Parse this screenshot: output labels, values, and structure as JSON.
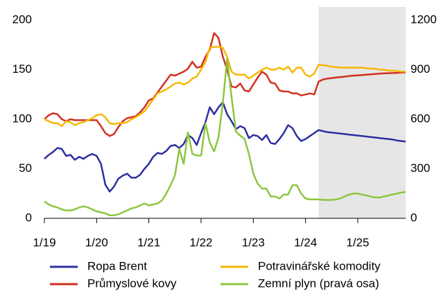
{
  "chart_data": {
    "type": "line",
    "x": [
      "1/19",
      "2/19",
      "3/19",
      "4/19",
      "5/19",
      "6/19",
      "7/19",
      "8/19",
      "9/19",
      "10/19",
      "11/19",
      "12/19",
      "1/20",
      "2/20",
      "3/20",
      "4/20",
      "5/20",
      "6/20",
      "7/20",
      "8/20",
      "9/20",
      "10/20",
      "11/20",
      "12/20",
      "1/21",
      "2/21",
      "3/21",
      "4/21",
      "5/21",
      "6/21",
      "7/21",
      "8/21",
      "9/21",
      "10/21",
      "11/21",
      "12/21",
      "1/22",
      "2/22",
      "3/22",
      "4/22",
      "5/22",
      "6/22",
      "7/22",
      "8/22",
      "9/22",
      "10/22",
      "11/22",
      "12/22",
      "1/23",
      "2/23",
      "3/23",
      "4/23",
      "5/23",
      "6/23",
      "7/23",
      "8/23",
      "9/23",
      "10/23",
      "11/23",
      "12/23",
      "1/24",
      "2/24",
      "3/24",
      "4/24",
      "5/24",
      "6/24",
      "7/24",
      "8/24",
      "9/24",
      "10/24",
      "11/24",
      "12/24",
      "1/25",
      "2/25",
      "3/25",
      "4/25",
      "5/25",
      "6/25",
      "7/25",
      "8/25",
      "9/25",
      "10/25",
      "11/25",
      "12/25"
    ],
    "xticks": [
      "1/19",
      "1/20",
      "1/21",
      "1/22",
      "1/23",
      "1/24",
      "1/25"
    ],
    "ylim": [
      0,
      200
    ],
    "yticks": [
      0,
      50,
      100,
      150,
      200
    ],
    "y2lim": [
      0,
      1200
    ],
    "y2ticks": [
      0,
      300,
      600,
      900,
      1200
    ],
    "shade": {
      "from": "4/24",
      "to": "12/25",
      "color": "#e6e6e6"
    },
    "series": [
      {
        "name": "Ropa Brent",
        "color": "#2b2fa0",
        "values": [
          60,
          64,
          67,
          71,
          70,
          63,
          64,
          59,
          62,
          60,
          63,
          65,
          63,
          55,
          34,
          27,
          32,
          40,
          43,
          45,
          41,
          41,
          44,
          50,
          55,
          62,
          66,
          65,
          68,
          73,
          74,
          71,
          75,
          84,
          81,
          74,
          86,
          97,
          112,
          105,
          112,
          117,
          105,
          98,
          90,
          93,
          91,
          81,
          84,
          83,
          79,
          84,
          76,
          75,
          80,
          86,
          94,
          91,
          83,
          78,
          80,
          83,
          86,
          89,
          88,
          87,
          86.5,
          86,
          85.5,
          85,
          84.5,
          84,
          83.5,
          83,
          82.5,
          82,
          81.5,
          81,
          80.5,
          80,
          79.5,
          78.5,
          78,
          77.5
        ]
      },
      {
        "name": "Průmyslové kovy",
        "color": "#d2301f",
        "values": [
          100,
          104,
          106,
          105,
          100,
          98,
          100,
          99,
          99,
          99,
          99,
          99,
          99,
          93,
          86,
          83,
          85,
          92,
          98,
          101,
          102,
          103,
          107,
          112,
          119,
          121,
          127,
          133,
          139,
          145,
          144,
          146,
          148,
          151,
          158,
          152,
          153,
          163,
          170,
          187,
          182,
          163,
          150,
          133,
          132,
          136,
          129,
          128,
          135,
          142,
          148,
          145,
          137,
          136,
          129,
          128,
          128,
          126,
          126,
          124,
          125,
          126,
          125,
          138,
          140,
          141,
          141.5,
          142,
          142.5,
          143,
          143.5,
          144,
          144.3,
          144.6,
          145,
          145.3,
          145.6,
          146,
          146.2,
          146.4,
          146.6,
          146.8,
          147,
          147.2
        ]
      },
      {
        "name": "Potravinářské komodity",
        "color": "#f5b800",
        "values": [
          100,
          98,
          96,
          96,
          93,
          98,
          97,
          94,
          96,
          97,
          99,
          101,
          104,
          105,
          102,
          96,
          95,
          96,
          96,
          97,
          100,
          102,
          105,
          108,
          114,
          120,
          126,
          128,
          130,
          133,
          136,
          137,
          135,
          137,
          141,
          143,
          150,
          158,
          172,
          173,
          173,
          172,
          163,
          148,
          145,
          145,
          145,
          141,
          144,
          147,
          150,
          152,
          150,
          150,
          152,
          150,
          153,
          147,
          152,
          152,
          145,
          143,
          146,
          155,
          154.5,
          154,
          153,
          152.5,
          152,
          152,
          152,
          152,
          152,
          152,
          151.5,
          151,
          151,
          150,
          150,
          149,
          149,
          148.5,
          148,
          148
        ]
      },
      {
        "name": "Zemní plyn (pravá osa)",
        "color": "#8cc63f",
        "axis": "y2",
        "values": [
          102,
          84,
          72,
          66,
          54,
          48,
          48,
          54,
          66,
          72,
          66,
          54,
          42,
          36,
          30,
          18,
          18,
          24,
          36,
          48,
          60,
          66,
          78,
          90,
          78,
          84,
          90,
          108,
          150,
          200,
          260,
          420,
          330,
          520,
          390,
          380,
          380,
          575,
          460,
          405,
          490,
          700,
          965,
          735,
          525,
          500,
          480,
          390,
          270,
          210,
          180,
          180,
          132,
          132,
          120,
          144,
          144,
          200,
          200,
          150,
          120,
          114,
          114,
          114,
          111,
          111,
          111,
          114,
          120,
          132,
          144,
          150,
          150,
          144,
          138,
          132,
          126,
          126,
          132,
          138,
          144,
          150,
          156,
          160
        ]
      }
    ]
  }
}
